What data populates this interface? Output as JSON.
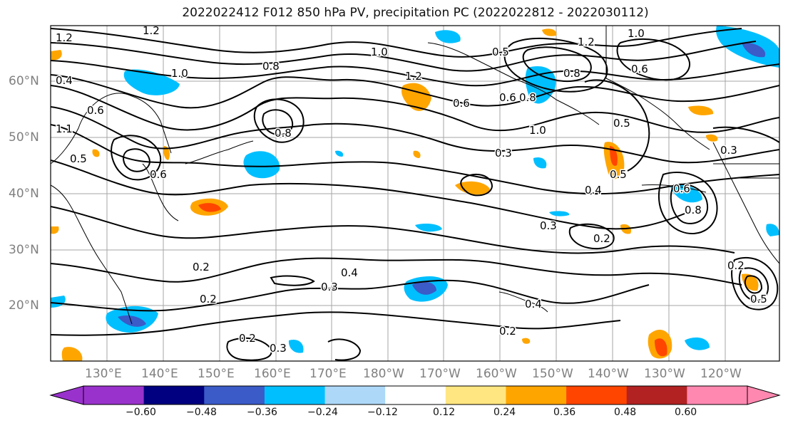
{
  "title": "2022022412 F012 850 hPa PV, precipitation PC (2022022812 - 2022030112)",
  "latitude_labels": [
    "60°N",
    "50°N",
    "40°N",
    "30°N",
    "20°N"
  ],
  "longitude_labels": [
    "130°E",
    "140°E",
    "150°E",
    "160°E",
    "170°E",
    "180°W",
    "170°W",
    "160°W",
    "150°W",
    "140°W",
    "130°W",
    "120°W"
  ],
  "contour_labels": [
    "1.2",
    "1.2",
    "1.0",
    "0.6",
    "0.4",
    "0.5",
    "0.6",
    "0.8",
    "1.0",
    "1.2",
    "0.6",
    "0.5",
    "0.8",
    "1.0",
    "0.3",
    "0.6",
    "0.8",
    "1.2",
    "1.0",
    "0.5",
    "0.3",
    "0.6",
    "0.5",
    "0.8",
    "0.4",
    "0.3",
    "0.2",
    "0.2",
    "0.2",
    "0.4",
    "0.3",
    "0.2",
    "0.2",
    "0.3",
    "0.4",
    "0.2",
    "0.5",
    "0.6",
    "0.8",
    "1.1"
  ],
  "colorbar": {
    "ticks": [
      "−0.60",
      "−0.48",
      "−0.36",
      "−0.24",
      "−0.12",
      "0.12",
      "0.24",
      "0.36",
      "0.48",
      "0.60"
    ],
    "colors": [
      "#9932cc",
      "#000080",
      "#3a5bc8",
      "#00bfff",
      "#add8f8",
      "#ffffff",
      "#ffe680",
      "#ffa500",
      "#ff4500",
      "#b22222",
      "#ff88b0",
      "#ff88b0"
    ]
  },
  "colors": {
    "contour": "#000000",
    "grid": "#808080",
    "axis_label": "#808080"
  }
}
